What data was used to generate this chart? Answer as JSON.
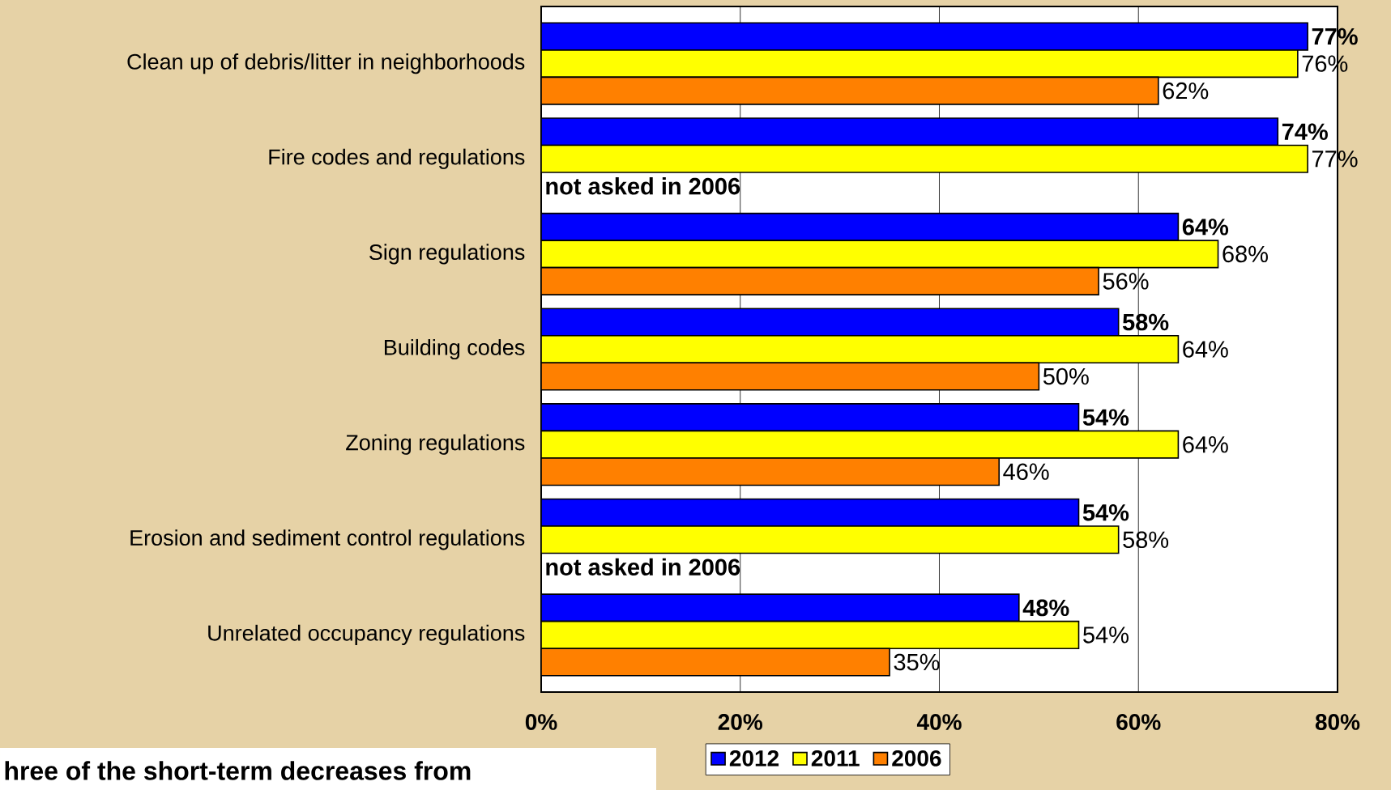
{
  "chart_data": {
    "type": "bar",
    "orientation": "horizontal",
    "categories": [
      "Clean up of debris/litter in neighborhoods",
      "Fire codes and regulations",
      "Sign regulations",
      "Building codes",
      "Zoning regulations",
      "Erosion and sediment control regulations",
      "Unrelated occupancy regulations"
    ],
    "series": [
      {
        "name": "2012",
        "color": "#0000ff",
        "values": [
          77,
          74,
          64,
          58,
          54,
          54,
          48
        ],
        "value_labels": [
          "77%",
          "74%",
          "64%",
          "58%",
          "54%",
          "54%",
          "48%"
        ]
      },
      {
        "name": "2011",
        "color": "#ffff00",
        "values": [
          76,
          77,
          68,
          64,
          64,
          58,
          54
        ],
        "value_labels": [
          "76%",
          "77%",
          "68%",
          "64%",
          "64%",
          "58%",
          "54%"
        ]
      },
      {
        "name": "2006",
        "color": "#ff8000",
        "values": [
          62,
          null,
          56,
          50,
          46,
          null,
          35
        ],
        "value_labels": [
          "62%",
          null,
          "56%",
          "50%",
          "46%",
          null,
          "35%"
        ]
      }
    ],
    "xlim": [
      0,
      80
    ],
    "xticks": [
      {
        "value": 0,
        "label": "0%"
      },
      {
        "value": 20,
        "label": "20%"
      },
      {
        "value": 40,
        "label": "40%"
      },
      {
        "value": 60,
        "label": "60%"
      },
      {
        "value": 80,
        "label": "80%"
      }
    ],
    "grid": "x",
    "legend": "bottom",
    "annotations": [
      "not asked in 2006",
      "not asked in 2006",
      "hree of the short-term decreases from"
    ]
  }
}
